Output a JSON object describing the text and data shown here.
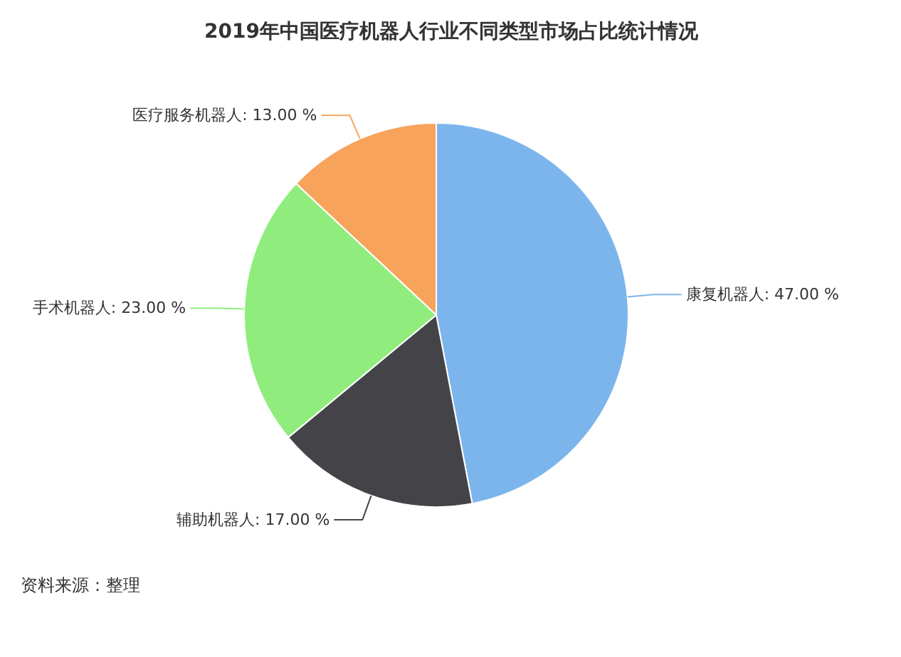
{
  "chart_data": {
    "type": "pie",
    "title": "2019年中国医疗机器人行业不同类型市场占比统计情况",
    "categories": [
      "康复机器人",
      "辅助机器人",
      "手术机器人",
      "医疗服务机器人"
    ],
    "values": [
      47,
      17,
      23,
      13
    ],
    "colors": [
      "#7cb5ec",
      "#434348",
      "#90ed7d",
      "#f7a35c"
    ],
    "value_labels": [
      "47.00 %",
      "17.00 %",
      "23.00 %",
      "13.00 %"
    ],
    "annotations": [
      "资料来源：整理"
    ]
  }
}
